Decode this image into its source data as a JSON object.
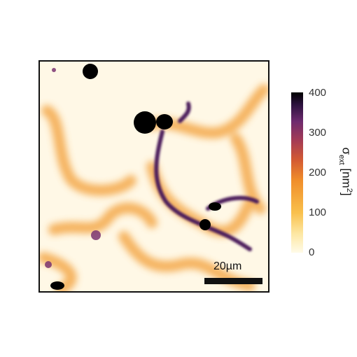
{
  "scale_bar": {
    "label": "20µm"
  },
  "colorbar": {
    "ticks": [
      "400",
      "300",
      "200",
      "100",
      "0"
    ],
    "symbol": "σ",
    "subscript": "ext",
    "unit_open": " [nm",
    "unit_sup": "2",
    "unit_close": "]"
  },
  "colors": {
    "background": "#fff8e6",
    "low": "#fde7a2",
    "mid": "#f08e2a",
    "high": "#6d2a6e",
    "max": "#000000"
  }
}
